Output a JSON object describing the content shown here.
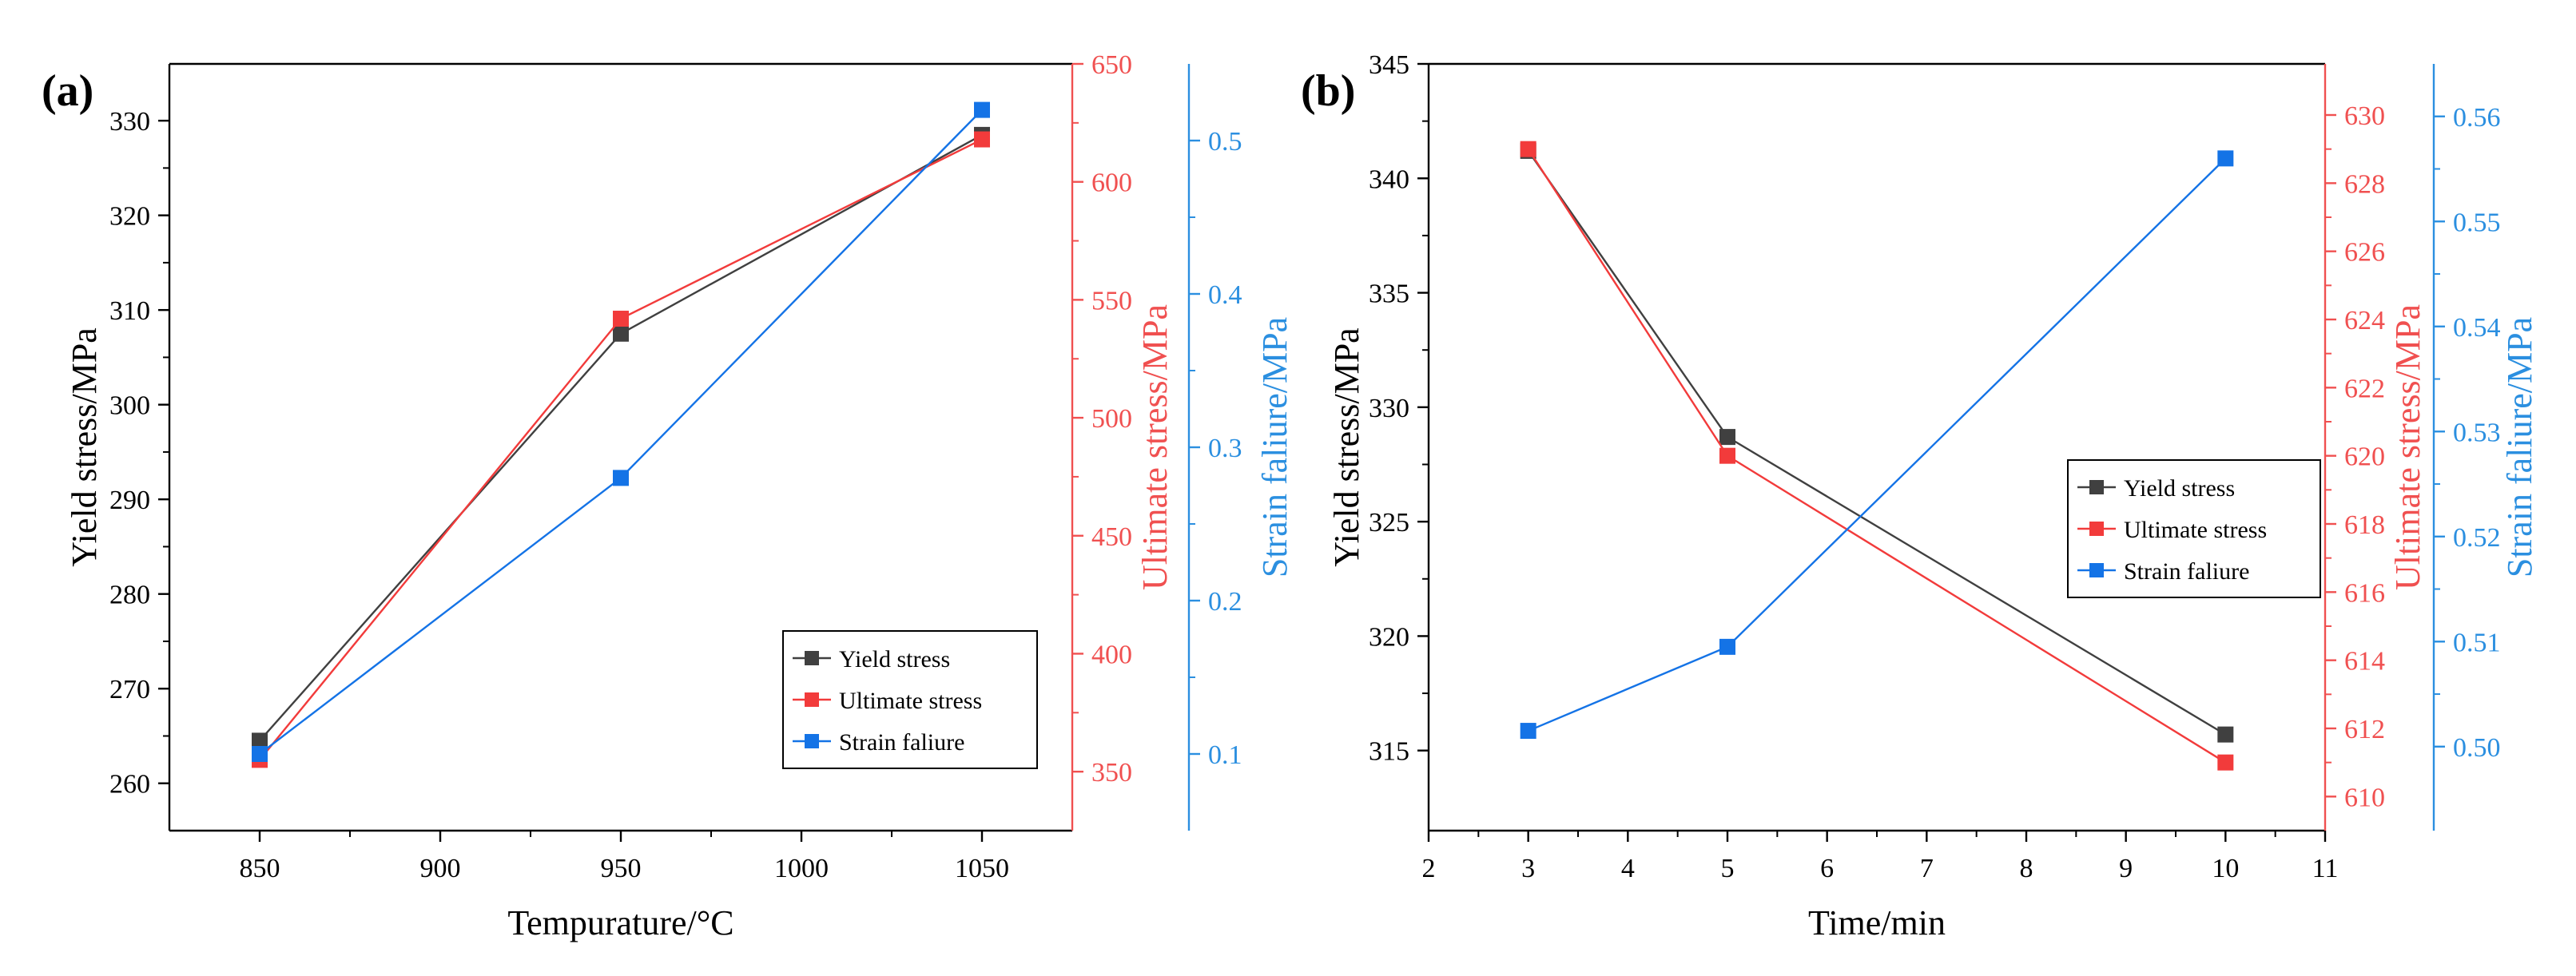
{
  "colors": {
    "yield": "#404040",
    "ultimate": "#f23b3b",
    "strain": "#1473e6",
    "ultimate_axis": "#f05050",
    "strain_axis": "#2b8fe0"
  },
  "chart_data": [
    {
      "panel_label": "(a)",
      "type": "line",
      "xlabel": "Tempurature/°C",
      "x": [
        850,
        950,
        1050
      ],
      "xlim": [
        825,
        1075
      ],
      "xticks": [
        850,
        900,
        950,
        1000,
        1050
      ],
      "xtick_labels": [
        "850",
        "900",
        "950",
        "1000",
        "1050"
      ],
      "y_axes": [
        {
          "key": "yield",
          "label": "Yield stress/MPa",
          "lim": [
            255,
            336
          ],
          "ticks": [
            260,
            270,
            280,
            290,
            300,
            310,
            320,
            330
          ],
          "tick_labels": [
            "260",
            "270",
            "280",
            "290",
            "300",
            "310",
            "320",
            "330"
          ]
        },
        {
          "key": "ultimate",
          "label": "Ultimate stress/MPa",
          "lim": [
            325,
            650
          ],
          "ticks": [
            350,
            400,
            450,
            500,
            550,
            600,
            650
          ],
          "tick_labels": [
            "350",
            "400",
            "450",
            "500",
            "550",
            "600",
            "650"
          ]
        },
        {
          "key": "strain",
          "label": "Strain faliure/MPa",
          "lim": [
            0.05,
            0.55
          ],
          "ticks": [
            0.1,
            0.2,
            0.3,
            0.4,
            0.5
          ],
          "tick_labels": [
            "0.1",
            "0.2",
            "0.3",
            "0.4",
            "0.5"
          ]
        }
      ],
      "series": [
        {
          "key": "yield",
          "name": "Yield stress",
          "axis": 0,
          "values": [
            264.5,
            307.5,
            328.5
          ]
        },
        {
          "key": "ultimate",
          "name": "Ultimate stress",
          "axis": 1,
          "values": [
            355,
            542,
            618
          ]
        },
        {
          "key": "strain",
          "name": "Strain faliure",
          "axis": 2,
          "values": [
            0.1,
            0.28,
            0.52
          ]
        }
      ],
      "legend": "lower-right"
    },
    {
      "panel_label": "(b)",
      "type": "line",
      "xlabel": "Time/min",
      "x": [
        3,
        5,
        10
      ],
      "xlim": [
        2,
        11
      ],
      "xticks": [
        2,
        3,
        4,
        5,
        6,
        7,
        8,
        9,
        10,
        11
      ],
      "xtick_labels": [
        "2",
        "3",
        "4",
        "5",
        "6",
        "7",
        "8",
        "9",
        "10",
        "11"
      ],
      "y_axes": [
        {
          "key": "yield",
          "label": "Yield stress/MPa",
          "lim": [
            311.5,
            345
          ],
          "ticks": [
            315,
            320,
            325,
            330,
            335,
            340,
            345
          ],
          "tick_labels": [
            "315",
            "320",
            "325",
            "330",
            "335",
            "340",
            "345"
          ]
        },
        {
          "key": "ultimate",
          "label": "Ultimate stress/MPa",
          "lim": [
            609,
            631.5
          ],
          "ticks": [
            610,
            612,
            614,
            616,
            618,
            620,
            622,
            624,
            626,
            628,
            630
          ],
          "tick_labels": [
            "610",
            "612",
            "614",
            "616",
            "618",
            "620",
            "622",
            "624",
            "626",
            "628",
            "630"
          ]
        },
        {
          "key": "strain",
          "label": "Strain faliure/MPa",
          "lim": [
            0.492,
            0.565
          ],
          "ticks": [
            0.5,
            0.51,
            0.52,
            0.53,
            0.54,
            0.55,
            0.56
          ],
          "tick_labels": [
            "0.50",
            "0.51",
            "0.52",
            "0.53",
            "0.54",
            "0.55",
            "0.56"
          ]
        }
      ],
      "series": [
        {
          "key": "yield",
          "name": "Yield stress",
          "axis": 0,
          "values": [
            341.2,
            328.7,
            315.7
          ]
        },
        {
          "key": "ultimate",
          "name": "Ultimate stress",
          "axis": 1,
          "values": [
            629,
            620,
            611
          ]
        },
        {
          "key": "strain",
          "name": "Strain faliure",
          "axis": 2,
          "values": [
            0.5015,
            0.5095,
            0.556
          ]
        }
      ],
      "legend": "center-right"
    }
  ]
}
